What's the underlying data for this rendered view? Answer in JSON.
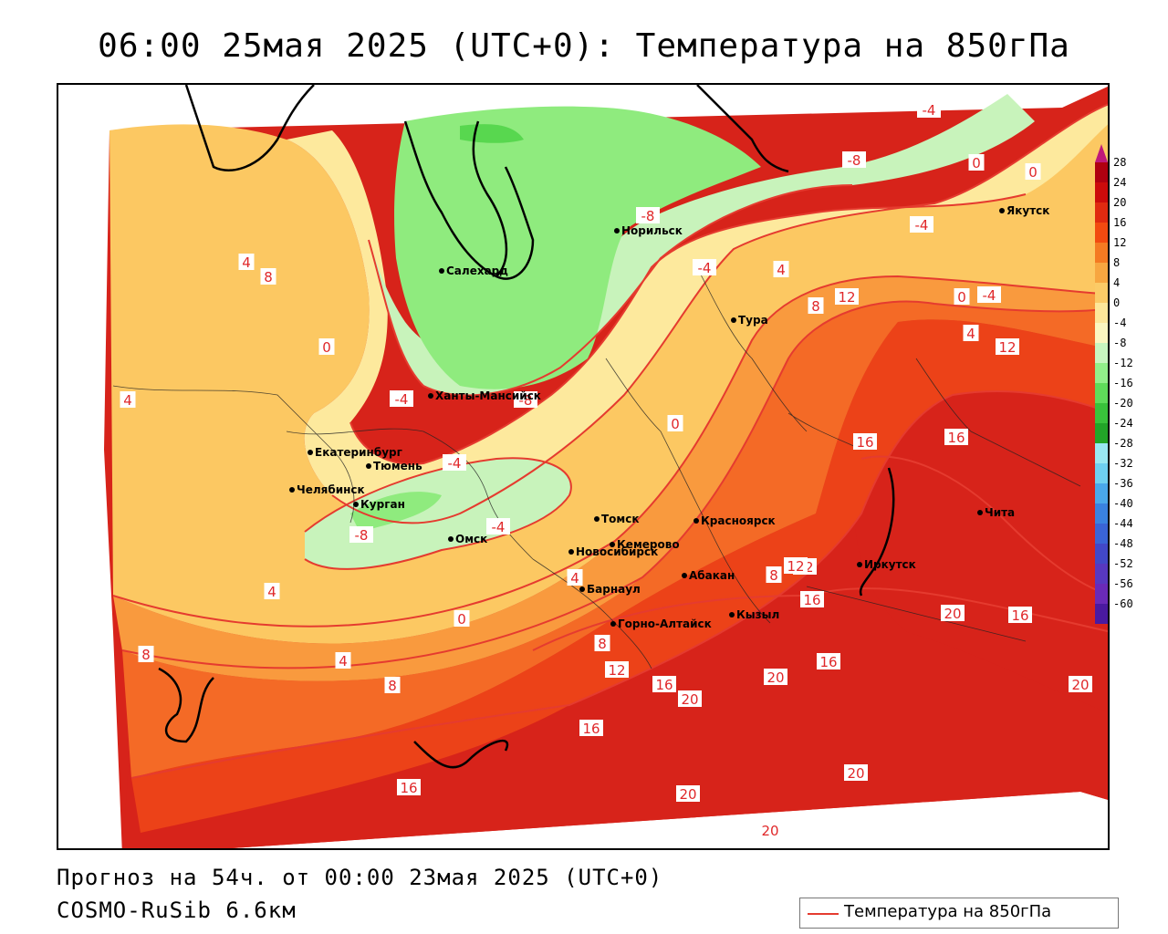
{
  "title": "06:00 25мая 2025 (UTC+0): Температура на 850гПа",
  "footer": {
    "forecast": "Прогноз на 54ч. от 00:00 23мая 2025 (UTC+0)",
    "model": "COSMO-RuSib 6.6км"
  },
  "legend": {
    "label": "Температура на 850гПа",
    "color": "#e53b2f"
  },
  "colorbar": {
    "ticks": [
      "28",
      "24",
      "20",
      "16",
      "12",
      "8",
      "4",
      "0",
      "-4",
      "-8",
      "-12",
      "-16",
      "-20",
      "-24",
      "-28",
      "-32",
      "-36",
      "-40",
      "-44",
      "-48",
      "-52",
      "-56",
      "-60"
    ],
    "colors": [
      "#b00010",
      "#cc0b0b",
      "#e02a10",
      "#f24a10",
      "#f47a22",
      "#f7a640",
      "#fbcb67",
      "#fde79a",
      "#fbf6c0",
      "#c8f5c0",
      "#92ef8a",
      "#5fdc5a",
      "#39c23b",
      "#22a528",
      "#9ae8f2",
      "#6fd0f0",
      "#4aa8ea",
      "#3a82e0",
      "#3a64d6",
      "#4248c8",
      "#5838c0",
      "#6a2ab8",
      "#4a1aa0"
    ]
  },
  "palette": {
    "t_ge20": "#d7231a",
    "t_16": "#ec4218",
    "t_12": "#f46a26",
    "t_8": "#f99a3e",
    "t_4": "#fcc862",
    "t_0": "#fde99d",
    "t_m4": "#c8f3bb",
    "t_m8": "#8feb7e",
    "t_m12": "#58d74f",
    "isoline": "#e53b2f",
    "border": "#000000"
  },
  "cities": [
    {
      "name": "Норильск"
    },
    {
      "name": "Салехард"
    },
    {
      "name": "Якутск"
    },
    {
      "name": "Тура"
    },
    {
      "name": "Ханты-Мансийск"
    },
    {
      "name": "Екатеринбург"
    },
    {
      "name": "Тюмень"
    },
    {
      "name": "Челябинск"
    },
    {
      "name": "Курган"
    },
    {
      "name": "Омск"
    },
    {
      "name": "Томск"
    },
    {
      "name": "Новосибирск"
    },
    {
      "name": "Кемерово"
    },
    {
      "name": "Красноярск"
    },
    {
      "name": "Барнаул"
    },
    {
      "name": "Абакан"
    },
    {
      "name": "Иркутск"
    },
    {
      "name": "Чита"
    },
    {
      "name": "Кызыл"
    },
    {
      "name": "Горно-Алтайск"
    }
  ],
  "isotherm_labels": [
    "-4",
    "0",
    "0",
    "-8",
    "-4",
    "-8",
    "-4",
    "-4",
    "0",
    "4",
    "4",
    "12",
    "8",
    "12",
    "0",
    "4",
    "8",
    "4",
    "0",
    "-4",
    "-8",
    "-4",
    "-8",
    "-4",
    "4",
    "16",
    "16",
    "16",
    "12",
    "8",
    "16",
    "20",
    "16",
    "8",
    "12",
    "20",
    "20",
    "20",
    "16",
    "12",
    "16",
    "20",
    "20",
    "20",
    "4",
    "0",
    "8",
    "4",
    "8",
    "16"
  ]
}
